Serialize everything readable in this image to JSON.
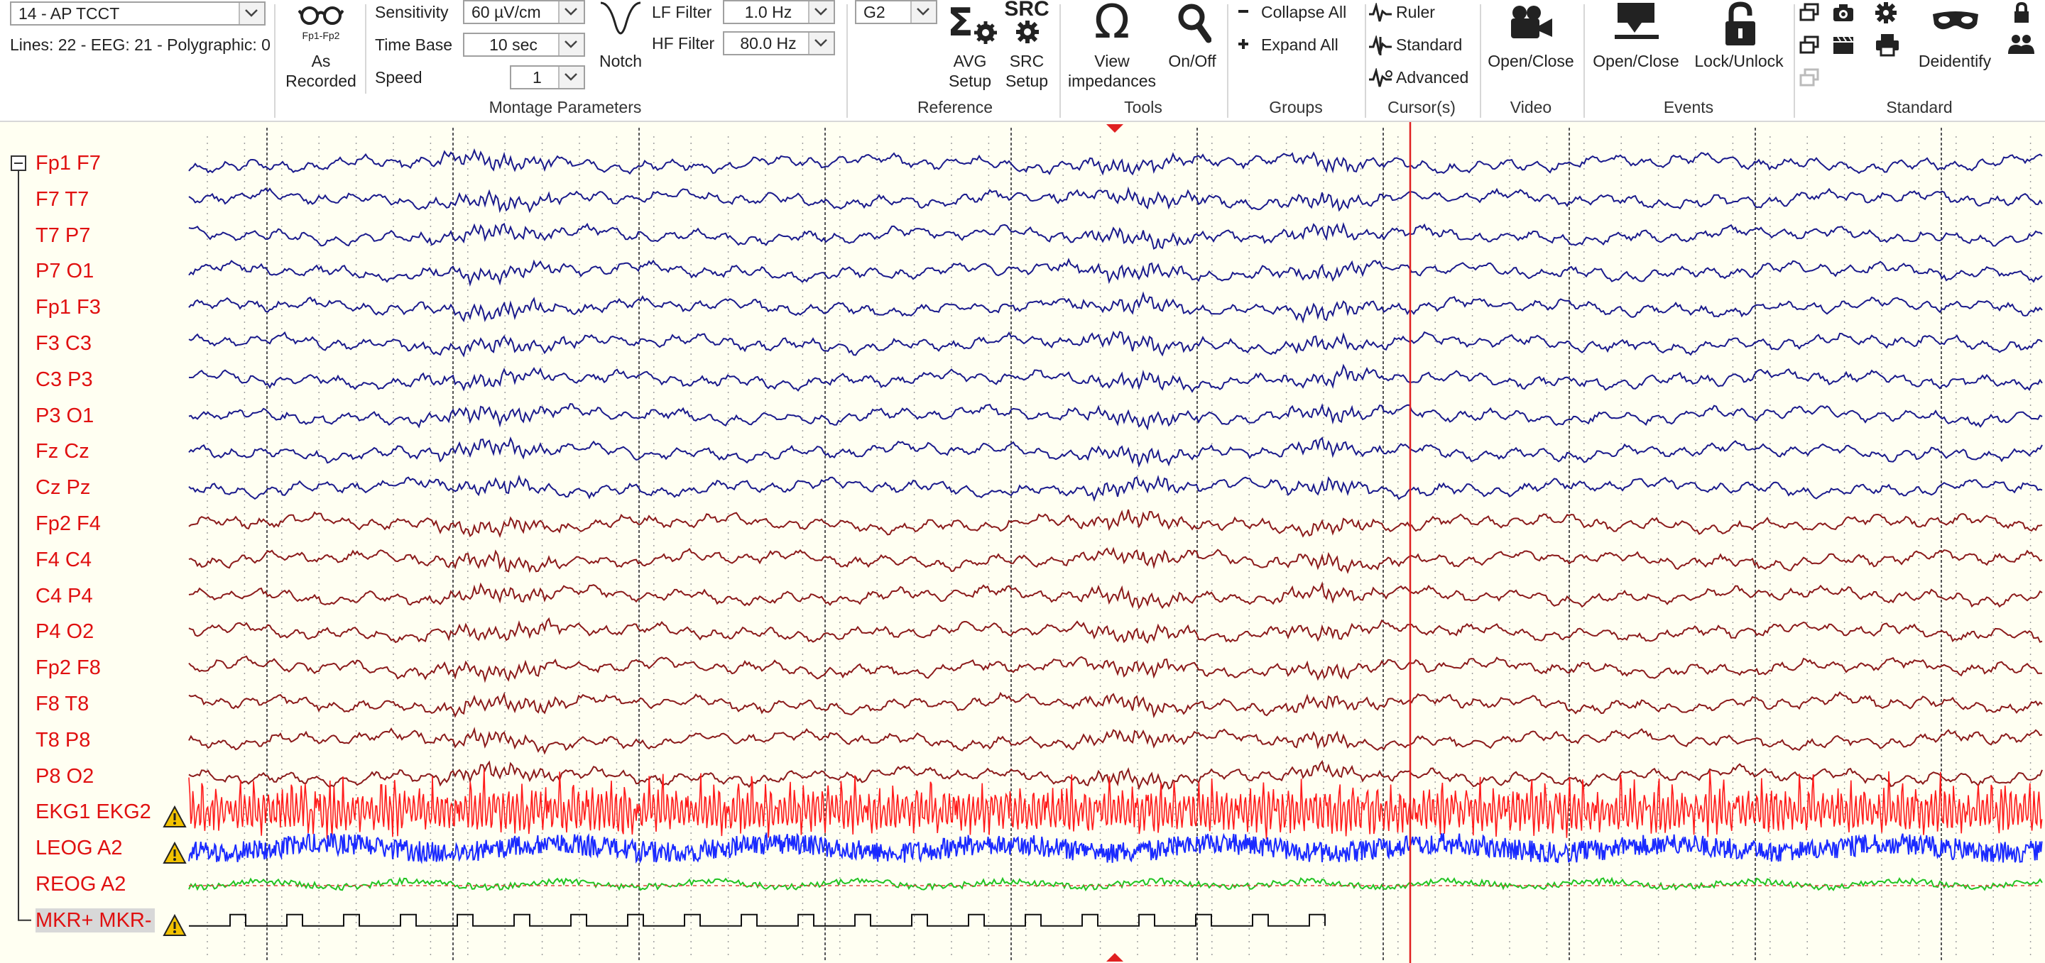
{
  "toolbar": {
    "montage_select": "14 - AP TCCT",
    "montage_info": "Lines: 22 - EEG: 21 - Polygraphic: 0",
    "as_recorded_icon_text": "Fp1-Fp2",
    "as_recorded_label": [
      "As",
      "Recorded"
    ],
    "sensitivity_label": "Sensitivity",
    "sensitivity_value": "60 µV/cm",
    "timebase_label": "Time Base",
    "timebase_value": "10 sec",
    "speed_label": "Speed",
    "speed_value": "1",
    "notch_label": "Notch",
    "lf_label": "LF Filter",
    "lf_value": "1.0 Hz",
    "hf_label": "HF Filter",
    "hf_value": "80.0 Hz",
    "montage_group": "Montage Parameters",
    "reference_select": "G2",
    "avg_label": [
      "AVG",
      "Setup"
    ],
    "src_icon_text": "SRC",
    "src_label": [
      "SRC",
      "Setup"
    ],
    "reference_group": "Reference",
    "impedances_label": [
      "View",
      "impedances"
    ],
    "onoff_label": "On/Off",
    "tools_group": "Tools",
    "collapse_all": "Collapse All",
    "expand_all": "Expand All",
    "groups_group": "Groups",
    "cursor_ruler": "Ruler",
    "cursor_standard": "Standard",
    "cursor_advanced": "Advanced",
    "cursors_group": "Cursor(s)",
    "video_label": "Open/Close",
    "video_group": "Video",
    "events_open": "Open/Close",
    "events_lock": "Lock/Unlock",
    "events_group": "Events",
    "deidentify": "Deidentify",
    "standard_group": "Standard"
  },
  "channels": [
    {
      "label": "Fp1 F7",
      "color": "#1a1a8c",
      "type": "eeg",
      "warning": false
    },
    {
      "label": "F7 T7",
      "color": "#1a1a8c",
      "type": "eeg",
      "warning": false
    },
    {
      "label": "T7 P7",
      "color": "#1a1a8c",
      "type": "eeg",
      "warning": false
    },
    {
      "label": "P7 O1",
      "color": "#1a1a8c",
      "type": "eeg",
      "warning": false
    },
    {
      "label": "Fp1 F3",
      "color": "#1a1a8c",
      "type": "eeg",
      "warning": false
    },
    {
      "label": "F3 C3",
      "color": "#1a1a8c",
      "type": "eeg",
      "warning": false
    },
    {
      "label": "C3 P3",
      "color": "#1a1a8c",
      "type": "eeg",
      "warning": false
    },
    {
      "label": "P3 O1",
      "color": "#1a1a8c",
      "type": "eeg",
      "warning": false
    },
    {
      "label": "Fz Cz",
      "color": "#1a1a8c",
      "type": "eeg",
      "warning": false
    },
    {
      "label": "Cz Pz",
      "color": "#1a1a8c",
      "type": "eeg",
      "warning": false
    },
    {
      "label": "Fp2 F4",
      "color": "#8b1a1a",
      "type": "eeg",
      "warning": false
    },
    {
      "label": "F4 C4",
      "color": "#8b1a1a",
      "type": "eeg",
      "warning": false
    },
    {
      "label": "C4 P4",
      "color": "#8b1a1a",
      "type": "eeg",
      "warning": false
    },
    {
      "label": "P4 O2",
      "color": "#8b1a1a",
      "type": "eeg",
      "warning": false
    },
    {
      "label": "Fp2 F8",
      "color": "#8b1a1a",
      "type": "eeg",
      "warning": false
    },
    {
      "label": "F8 T8",
      "color": "#8b1a1a",
      "type": "eeg",
      "warning": false
    },
    {
      "label": "T8 P8",
      "color": "#8b1a1a",
      "type": "eeg",
      "warning": false
    },
    {
      "label": "P8 O2",
      "color": "#8b1a1a",
      "type": "eeg",
      "warning": false
    },
    {
      "label": "EKG1 EKG2",
      "color": "#ff1a1a",
      "type": "ekg",
      "warning": true
    },
    {
      "label": "LEOG A2",
      "color": "#1a2aff",
      "type": "eog",
      "warning": true
    },
    {
      "label": "REOG A2",
      "color": "#22c322",
      "type": "reog",
      "warning": false
    },
    {
      "label": "MKR+ MKR-",
      "color": "#111111",
      "type": "marker",
      "warning": true
    }
  ],
  "colors": {
    "eeg_background": "#fffff2",
    "label_text": "#e01010",
    "cursor": "#e02020",
    "grid_dotted": "#a0a0a0",
    "grid_second": "#555555"
  },
  "icons": {
    "as_recorded": "glasses-icon",
    "notch": "notch-filter-icon",
    "avg": "sigma-gear-icon",
    "impedances": "omega-icon",
    "onoff": "magnifier-icon",
    "video": "video-camera-icon",
    "events_open": "event-marker-icon",
    "events_lock": "padlock-icon",
    "deidentify": "mask-icon"
  }
}
